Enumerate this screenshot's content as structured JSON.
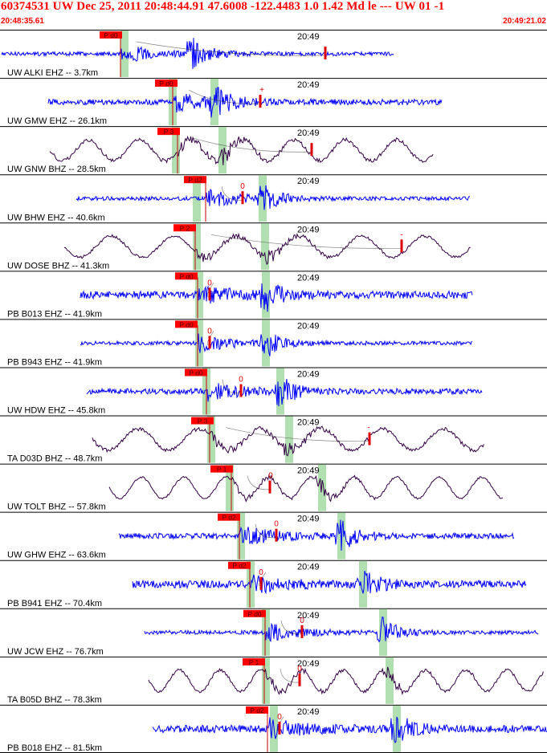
{
  "header": {
    "title": "60374531 UW Dec 25, 2011 20:48:44.91   47.6008 -122.4483  1.0 1.42 Md le --- UW 01   -1",
    "start_time": "20:48:35.61",
    "end_time": "20:49:21.02"
  },
  "colors": {
    "header_text": "#ff0000",
    "trace_blue": "#0000ff",
    "trace_dark": "#330044",
    "pick_flag": "#ff0000",
    "pick_line": "#cc0000",
    "window": "#a8dca8"
  },
  "chart_data": {
    "type": "line",
    "x_unit": "time",
    "x_start": "20:48:35.61",
    "x_end": "20:49:21.02",
    "minute_marker": "20:49",
    "channels": [
      {
        "label": "UW ALKI EHZ -- 3.7km",
        "distance_km": 3.7,
        "trace_color": "blue",
        "pick": "P d0",
        "amp_tag": ""
      },
      {
        "label": "UW GMW EHZ -- 26.1km",
        "distance_km": 26.1,
        "trace_color": "blue",
        "pick": "P d0",
        "amp_tag": "+"
      },
      {
        "label": "UW GNW BHZ -- 28.5km",
        "distance_km": 28.5,
        "trace_color": "dark",
        "pick": "P 3",
        "amp_tag": ""
      },
      {
        "label": "UW BHW EHZ -- 40.6km",
        "distance_km": 40.6,
        "trace_color": "blue",
        "pick": "P d2",
        "amp_tag": "0"
      },
      {
        "label": "UW DOSE BHZ -- 41.3km",
        "distance_km": 41.3,
        "trace_color": "dark",
        "pick": "P 2",
        "amp_tag": "-"
      },
      {
        "label": "PB B013 EHZ -- 41.9km",
        "distance_km": 41.9,
        "trace_color": "blue",
        "pick": "P d0",
        "amp_tag": "0"
      },
      {
        "label": "PB B943 EHZ -- 41.9km",
        "distance_km": 41.9,
        "trace_color": "blue",
        "pick": "P d0",
        "amp_tag": "0"
      },
      {
        "label": "UW HDW EHZ -- 45.8km",
        "distance_km": 45.8,
        "trace_color": "blue",
        "pick": "P d0",
        "amp_tag": "0"
      },
      {
        "label": "TA D03D BHZ -- 48.7km",
        "distance_km": 48.7,
        "trace_color": "dark",
        "pick": "P 3",
        "amp_tag": "-"
      },
      {
        "label": "UW TOLT BHZ -- 57.8km",
        "distance_km": 57.8,
        "trace_color": "dark",
        "pick": "P 1",
        "amp_tag": "0"
      },
      {
        "label": "UW GHW EHZ -- 63.6km",
        "distance_km": 63.6,
        "trace_color": "blue",
        "pick": "P d2",
        "amp_tag": "0"
      },
      {
        "label": "PB B941 EHZ -- 70.4km",
        "distance_km": 70.4,
        "trace_color": "blue",
        "pick": "P d2",
        "amp_tag": "0"
      },
      {
        "label": "UW JCW EHZ -- 76.7km",
        "distance_km": 76.7,
        "trace_color": "blue",
        "pick": "P d0",
        "amp_tag": "0"
      },
      {
        "label": "TA B05D BHZ -- 78.3km",
        "distance_km": 78.3,
        "trace_color": "dark",
        "pick": "P 1",
        "amp_tag": "0"
      },
      {
        "label": "PB B018 EHZ -- 81.5km",
        "distance_km": 81.5,
        "trace_color": "blue",
        "pick": "P d2",
        "amp_tag": "0"
      }
    ]
  }
}
